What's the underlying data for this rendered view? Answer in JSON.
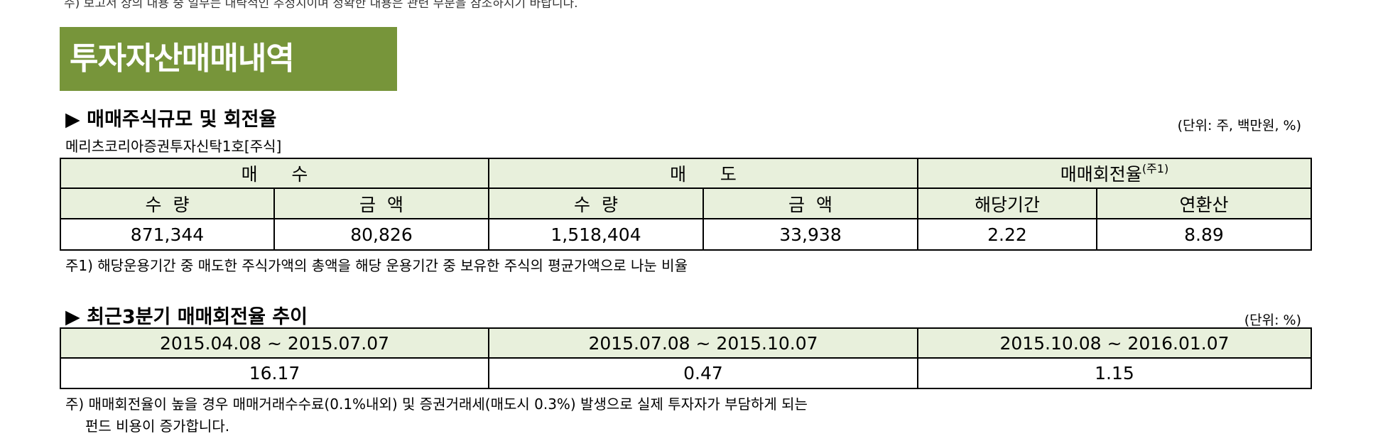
{
  "page": {
    "cut_line": "주) 보고서 상의 내용 중 일부는 대략적인 추정치이며 정확한 내용은 관련 부분을 참조하시기 바랍니다.",
    "banner_title": "투자자산매매내역",
    "accent_color": "#77953a",
    "header_bg": "#e8f0dc"
  },
  "section1": {
    "title": "▶ 매매주식규모 및 회전율",
    "unit": "(단위: 주, 백만원, %)",
    "fund_name": "메리츠코리아증권투자신탁1호[주식]",
    "headers": {
      "buy": "매      수",
      "sell": "매      도",
      "turnover": "매매회전율",
      "turnover_sup": "(주1)",
      "qty": "수  량",
      "amount": "금  액",
      "period": "해당기간",
      "annualized": "연환산"
    },
    "values": {
      "buy_qty": "871,344",
      "buy_amount": "80,826",
      "sell_qty": "1,518,404",
      "sell_amount": "33,938",
      "turnover_period": "2.22",
      "turnover_annualized": "8.89"
    },
    "note": "주1) 해당운용기간 중 매도한 주식가액의 총액을 해당 운용기간 중 보유한 주식의 평균가액으로 나눈 비율"
  },
  "section2": {
    "title": "▶ 최근3분기 매매회전율 추이",
    "unit": "(단위: %)",
    "periods": [
      "2015.04.08 ~ 2015.07.07",
      "2015.07.08 ~ 2015.10.07",
      "2015.10.08 ~ 2016.01.07"
    ],
    "values": [
      "16.17",
      "0.47",
      "1.15"
    ],
    "note_line1": "주) 매매회전율이 높을 경우 매매거래수수료(0.1%내외) 및 증권거래세(매도시 0.3%) 발생으로 실제 투자자가 부담하게 되는",
    "note_line2": "펀드 비용이 증가합니다."
  }
}
